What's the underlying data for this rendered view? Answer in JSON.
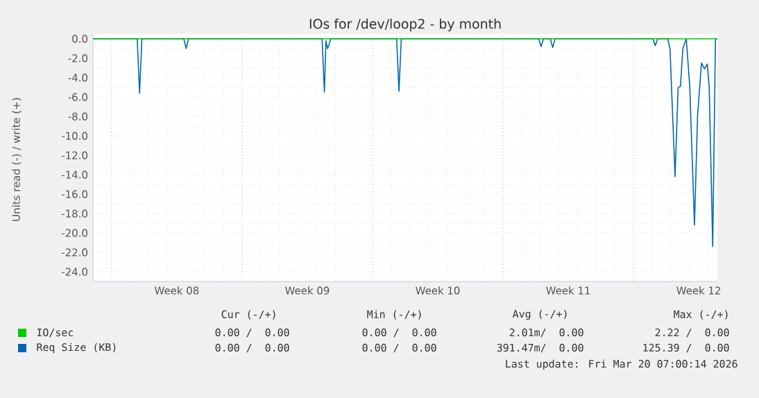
{
  "chart_data": {
    "type": "line",
    "title": "IOs for /dev/loop2 - by month",
    "ylabel": "Units read (-) / write (+)",
    "xlim": [
      "2026-02-15T00:00",
      "2026-03-20T12:00"
    ],
    "xticks": [
      {
        "value": "2026-02-16T00:00",
        "label": null
      },
      {
        "value": "2026-02-19T12:00",
        "label": "Week 08"
      },
      {
        "value": "2026-02-23T00:00",
        "label": null
      },
      {
        "value": "2026-02-26T12:00",
        "label": "Week 09"
      },
      {
        "value": "2026-03-02T00:00",
        "label": null
      },
      {
        "value": "2026-03-05T12:00",
        "label": "Week 10"
      },
      {
        "value": "2026-03-09T00:00",
        "label": null
      },
      {
        "value": "2026-03-12T12:00",
        "label": "Week 11"
      },
      {
        "value": "2026-03-16T00:00",
        "label": null
      },
      {
        "value": "2026-03-19T12:00",
        "label": "Week 12"
      }
    ],
    "ylim": [
      -25,
      0.5
    ],
    "yticks": [
      {
        "value": 0,
        "label": "0.0"
      },
      {
        "value": -1,
        "label": null
      },
      {
        "value": -2,
        "label": "-2.0"
      },
      {
        "value": -3,
        "label": null
      },
      {
        "value": -4,
        "label": "-4.0"
      },
      {
        "value": -5,
        "label": null
      },
      {
        "value": -6,
        "label": "-6.0"
      },
      {
        "value": -7,
        "label": null
      },
      {
        "value": -8,
        "label": "-8.0"
      },
      {
        "value": -9,
        "label": null
      },
      {
        "value": -10,
        "label": "-10.0"
      },
      {
        "value": -11,
        "label": null
      },
      {
        "value": -12,
        "label": "-12.0"
      },
      {
        "value": -13,
        "label": null
      },
      {
        "value": -14,
        "label": "-14.0"
      },
      {
        "value": -15,
        "label": null
      },
      {
        "value": -16,
        "label": "-16.0"
      },
      {
        "value": -17,
        "label": null
      },
      {
        "value": -18,
        "label": "-18.0"
      },
      {
        "value": -19,
        "label": null
      },
      {
        "value": -20,
        "label": "-20.0"
      },
      {
        "value": -21,
        "label": null
      },
      {
        "value": -22,
        "label": "-22.0"
      },
      {
        "value": -23,
        "label": null
      },
      {
        "value": -24,
        "label": "-24.0"
      }
    ],
    "grid": true,
    "legend": "bottom",
    "marker": "none",
    "line_style": "solid",
    "series": [
      {
        "name": "IO/sec",
        "color": "#00cc00",
        "x": [
          "2026-02-15T00:00",
          "2026-03-20T12:00"
        ],
        "values": [
          0,
          0
        ]
      },
      {
        "name": "Req Size (KB)",
        "color": "#0066b3",
        "x": [
          "2026-02-15T00:00",
          "2026-02-17T09:00",
          "2026-02-17T12:00",
          "2026-02-17T15:00",
          "2026-02-19T21:00",
          "2026-02-20T00:00",
          "2026-02-20T03:00",
          "2026-02-27T07:00",
          "2026-02-27T10:00",
          "2026-02-27T12:00",
          "2026-02-27T14:00",
          "2026-02-27T16:00",
          "2026-02-27T18:00",
          "2026-03-03T07:00",
          "2026-03-03T10:00",
          "2026-03-03T13:00",
          "2026-03-10T22:00",
          "2026-03-11T01:00",
          "2026-03-11T04:00",
          "2026-03-11T13:00",
          "2026-03-11T16:00",
          "2026-03-11T19:00",
          "2026-03-17T01:00",
          "2026-03-17T04:00",
          "2026-03-17T07:00",
          "2026-03-17T20:00",
          "2026-03-17T23:00",
          "2026-03-18T05:30",
          "2026-03-18T09:30",
          "2026-03-18T12:30",
          "2026-03-18T15:30",
          "2026-03-18T20:00",
          "2026-03-19T00:30",
          "2026-03-19T06:30",
          "2026-03-19T10:30",
          "2026-03-19T15:30",
          "2026-03-19T19:30",
          "2026-03-19T23:00",
          "2026-03-20T01:30",
          "2026-03-20T06:00",
          "2026-03-20T09:30",
          "2026-03-20T12:00"
        ],
        "values": [
          0,
          0,
          -5.6,
          0,
          0,
          -1.0,
          0,
          0,
          -5.5,
          -0.2,
          -1.0,
          -0.6,
          0,
          0,
          -5.4,
          0,
          0,
          -0.8,
          0,
          0,
          -0.9,
          0,
          0,
          -0.7,
          0,
          0,
          -1.0,
          -14.2,
          -5.0,
          -4.9,
          -1.0,
          0,
          -5.0,
          -19.2,
          -7.9,
          -2.5,
          -3.1,
          -2.6,
          -5.0,
          -21.4,
          0,
          0
        ]
      }
    ],
    "annotations": [
      "Cur (-/+)",
      "Min (-/+)",
      "Avg (-/+)",
      "Max (-/+)",
      "0.00 /  0.00",
      "0.00 /  0.00",
      "2.01m/  0.00",
      "2.22 /  0.00",
      "0.00 /  0.00",
      "0.00 /  0.00",
      "391.47m/  0.00",
      "125.39 /  0.00",
      "Last update: Fri Mar 20 07:00:14 2026"
    ]
  }
}
